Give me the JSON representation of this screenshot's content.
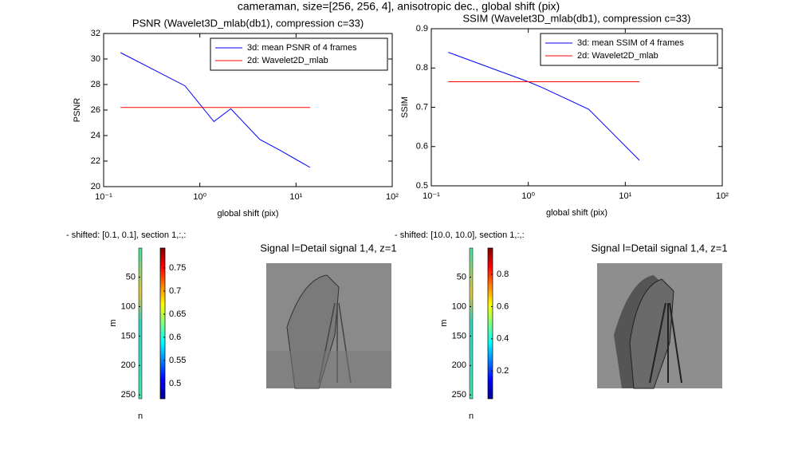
{
  "figure_title": "cameraman, size=[256, 256, 4], anisotropic dec., global shift (pix)",
  "chart_data": [
    {
      "type": "line",
      "title": "PSNR (Wavelet3D_mlab(db1), compression c=33)",
      "xlabel": "global shift (pix)",
      "ylabel": "PSNR",
      "xscale": "log",
      "xlim": [
        0.1,
        100
      ],
      "xticks": [
        {
          "value": 0.1,
          "label": "10⁻¹"
        },
        {
          "value": 1,
          "label": "10⁰"
        },
        {
          "value": 10,
          "label": "10¹"
        },
        {
          "value": 100,
          "label": "10²"
        }
      ],
      "ylim": [
        20,
        32
      ],
      "yticks": [
        20,
        22,
        24,
        26,
        28,
        30,
        32
      ],
      "legend": "upper right",
      "grid": false,
      "x": [
        0.15,
        0.7,
        1.4,
        2.1,
        4.2,
        7,
        14
      ],
      "series": [
        {
          "name": "3d: mean PSNR of 4 frames",
          "color": "#0000ff",
          "values": [
            30.5,
            27.9,
            25.1,
            26.1,
            23.7,
            22.8,
            21.5
          ]
        },
        {
          "name": "2d: Wavelet2D_mlab",
          "color": "#ff0000",
          "values": [
            26.2,
            26.2,
            26.2,
            26.2,
            26.2,
            26.2,
            26.2
          ]
        }
      ]
    },
    {
      "type": "line",
      "title": "SSIM (Wavelet3D_mlab(db1), compression c=33)",
      "xlabel": "global shift (pix)",
      "ylabel": "SSIM",
      "xscale": "log",
      "xlim": [
        0.1,
        100
      ],
      "xticks": [
        {
          "value": 0.1,
          "label": "10⁻¹"
        },
        {
          "value": 1,
          "label": "10⁰"
        },
        {
          "value": 10,
          "label": "10¹"
        },
        {
          "value": 100,
          "label": "10²"
        }
      ],
      "ylim": [
        0.5,
        0.9
      ],
      "yticks": [
        0.5,
        0.6,
        0.7,
        0.8,
        0.9
      ],
      "legend": "upper right",
      "grid": false,
      "x": [
        0.15,
        1,
        1.4,
        4.2,
        14
      ],
      "series": [
        {
          "name": "3d: mean SSIM of 4 frames",
          "color": "#0000ff",
          "values": [
            0.84,
            0.765,
            0.75,
            0.695,
            0.565
          ]
        },
        {
          "name": "2d: Wavelet2D_mlab",
          "color": "#ff0000",
          "values": [
            0.765,
            0.765,
            0.765,
            0.765,
            0.765
          ]
        }
      ]
    }
  ],
  "panels": [
    {
      "caption": "- shifted: [0.1, 0.1], section 1,:,:",
      "ylabel": "m",
      "xlabel": "n",
      "ylim": [
        0.5,
        256.5
      ],
      "yticks": [
        50,
        100,
        150,
        200,
        250
      ],
      "colorbar": {
        "lim": [
          0.467,
          0.793
        ],
        "ticks": [
          0.5,
          0.55,
          0.6,
          0.65,
          0.7,
          0.75
        ]
      },
      "image_title": "Signal l=Detail signal 1,4, z=1"
    },
    {
      "caption": "- shifted: [10.0, 10.0], section 1,:,:",
      "ylabel": "m",
      "xlabel": "n",
      "ylim": [
        0.5,
        256.5
      ],
      "yticks": [
        50,
        100,
        150,
        200,
        250
      ],
      "colorbar": {
        "lim": [
          0.027,
          0.964
        ],
        "ticks": [
          0.2,
          0.4,
          0.6,
          0.8
        ]
      },
      "image_title": "Signal l=Detail signal 1,4, z=1"
    }
  ]
}
